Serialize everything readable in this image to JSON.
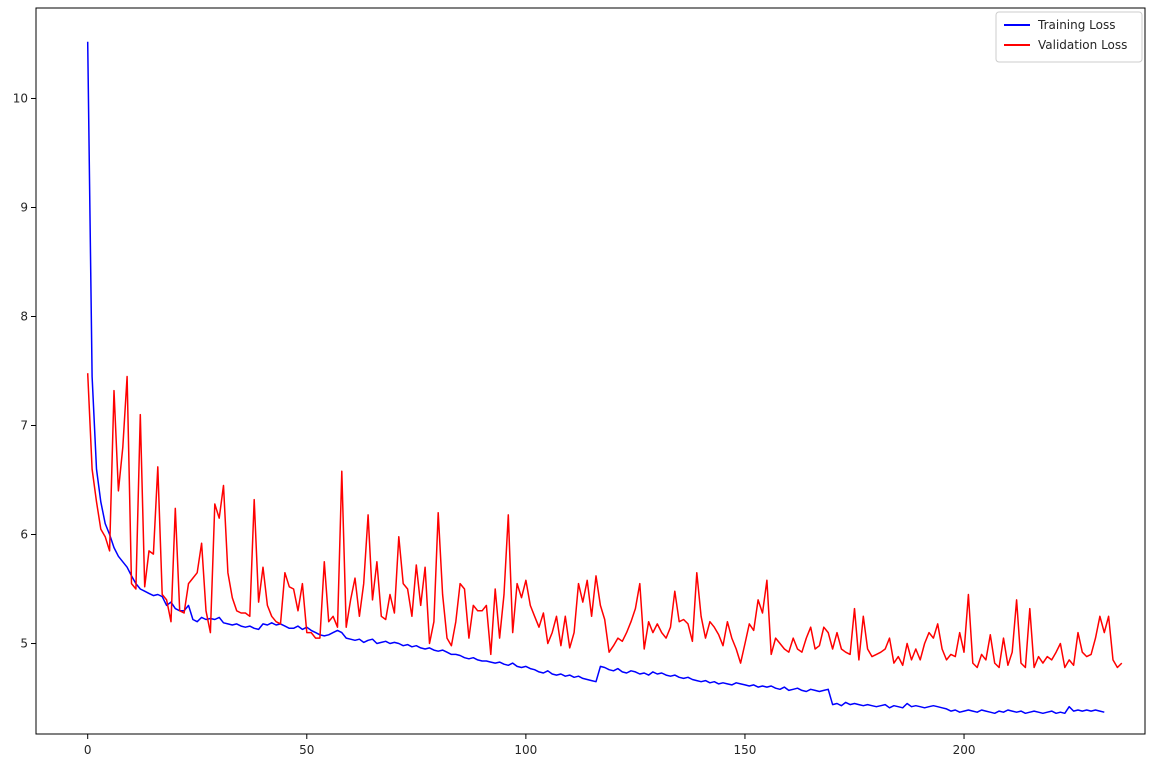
{
  "chart_data": {
    "type": "line",
    "title": "",
    "xlabel": "",
    "ylabel": "",
    "xlim": [
      -11.8,
      241.3
    ],
    "ylim": [
      4.17,
      10.83
    ],
    "xticks": [
      0,
      50,
      100,
      150,
      200
    ],
    "yticks": [
      5,
      6,
      7,
      8,
      9,
      10
    ],
    "grid": false,
    "legend_position": "top-right",
    "series": [
      {
        "name": "Training Loss",
        "color": "#0000ff",
        "x_start": 0,
        "values": [
          10.52,
          7.45,
          6.6,
          6.3,
          6.1,
          6.0,
          5.88,
          5.8,
          5.75,
          5.7,
          5.62,
          5.55,
          5.5,
          5.48,
          5.46,
          5.44,
          5.45,
          5.43,
          5.35,
          5.38,
          5.32,
          5.3,
          5.3,
          5.35,
          5.22,
          5.2,
          5.24,
          5.22,
          5.23,
          5.22,
          5.24,
          5.19,
          5.18,
          5.17,
          5.18,
          5.16,
          5.15,
          5.16,
          5.14,
          5.13,
          5.18,
          5.17,
          5.19,
          5.17,
          5.18,
          5.16,
          5.14,
          5.14,
          5.16,
          5.13,
          5.15,
          5.12,
          5.1,
          5.08,
          5.07,
          5.08,
          5.1,
          5.12,
          5.1,
          5.05,
          5.04,
          5.03,
          5.04,
          5.01,
          5.03,
          5.04,
          5.0,
          5.01,
          5.02,
          5.0,
          5.01,
          5.0,
          4.98,
          4.99,
          4.97,
          4.98,
          4.96,
          4.95,
          4.96,
          4.94,
          4.93,
          4.94,
          4.92,
          4.9,
          4.9,
          4.89,
          4.87,
          4.86,
          4.87,
          4.85,
          4.84,
          4.84,
          4.83,
          4.82,
          4.83,
          4.81,
          4.8,
          4.82,
          4.79,
          4.78,
          4.79,
          4.77,
          4.76,
          4.74,
          4.73,
          4.75,
          4.72,
          4.71,
          4.72,
          4.7,
          4.71,
          4.69,
          4.7,
          4.68,
          4.67,
          4.66,
          4.65,
          4.79,
          4.78,
          4.76,
          4.75,
          4.77,
          4.74,
          4.73,
          4.75,
          4.74,
          4.72,
          4.73,
          4.71,
          4.74,
          4.72,
          4.73,
          4.71,
          4.7,
          4.71,
          4.69,
          4.68,
          4.69,
          4.67,
          4.66,
          4.65,
          4.66,
          4.64,
          4.65,
          4.63,
          4.64,
          4.63,
          4.62,
          4.64,
          4.63,
          4.62,
          4.61,
          4.62,
          4.6,
          4.61,
          4.6,
          4.61,
          4.59,
          4.58,
          4.6,
          4.57,
          4.58,
          4.59,
          4.57,
          4.56,
          4.58,
          4.57,
          4.56,
          4.57,
          4.58,
          4.44,
          4.45,
          4.43,
          4.46,
          4.44,
          4.45,
          4.44,
          4.43,
          4.44,
          4.43,
          4.42,
          4.43,
          4.44,
          4.41,
          4.43,
          4.42,
          4.41,
          4.45,
          4.42,
          4.43,
          4.42,
          4.41,
          4.42,
          4.43,
          4.42,
          4.41,
          4.4,
          4.38,
          4.39,
          4.37,
          4.38,
          4.39,
          4.38,
          4.37,
          4.39,
          4.38,
          4.37,
          4.36,
          4.38,
          4.37,
          4.39,
          4.38,
          4.37,
          4.38,
          4.36,
          4.37,
          4.38,
          4.37,
          4.36,
          4.37,
          4.38,
          4.36,
          4.37,
          4.36,
          4.42,
          4.38,
          4.39,
          4.38,
          4.39,
          4.38,
          4.39,
          4.38,
          4.37
        ]
      },
      {
        "name": "Validation Loss",
        "color": "#ff0000",
        "x_start": 0,
        "values": [
          7.48,
          6.6,
          6.3,
          6.05,
          5.98,
          5.85,
          7.32,
          6.4,
          6.8,
          7.45,
          5.55,
          5.5,
          7.1,
          5.52,
          5.85,
          5.82,
          6.62,
          5.45,
          5.4,
          5.2,
          6.24,
          5.3,
          5.28,
          5.55,
          5.6,
          5.65,
          5.92,
          5.3,
          5.1,
          6.28,
          6.15,
          6.45,
          5.65,
          5.42,
          5.3,
          5.28,
          5.28,
          5.25,
          6.32,
          5.38,
          5.7,
          5.35,
          5.25,
          5.2,
          5.18,
          5.65,
          5.52,
          5.5,
          5.3,
          5.55,
          5.1,
          5.1,
          5.05,
          5.05,
          5.75,
          5.2,
          5.25,
          5.15,
          6.58,
          5.15,
          5.4,
          5.6,
          5.25,
          5.55,
          6.18,
          5.4,
          5.75,
          5.25,
          5.22,
          5.45,
          5.28,
          5.98,
          5.55,
          5.5,
          5.25,
          5.72,
          5.35,
          5.7,
          5.0,
          5.2,
          6.2,
          5.45,
          5.05,
          4.98,
          5.2,
          5.55,
          5.5,
          5.05,
          5.35,
          5.3,
          5.3,
          5.35,
          4.9,
          5.5,
          5.05,
          5.45,
          6.18,
          5.1,
          5.55,
          5.42,
          5.58,
          5.35,
          5.25,
          5.15,
          5.28,
          5.0,
          5.1,
          5.25,
          4.98,
          5.25,
          4.96,
          5.1,
          5.55,
          5.38,
          5.58,
          5.25,
          5.62,
          5.35,
          5.22,
          4.92,
          4.98,
          5.05,
          5.02,
          5.1,
          5.2,
          5.32,
          5.55,
          4.95,
          5.2,
          5.1,
          5.18,
          5.1,
          5.05,
          5.15,
          5.48,
          5.2,
          5.22,
          5.18,
          5.02,
          5.65,
          5.25,
          5.05,
          5.2,
          5.15,
          5.08,
          4.98,
          5.2,
          5.05,
          4.95,
          4.82,
          5.0,
          5.18,
          5.12,
          5.4,
          5.28,
          5.58,
          4.9,
          5.05,
          5.0,
          4.95,
          4.92,
          5.05,
          4.95,
          4.92,
          5.05,
          5.15,
          4.95,
          4.98,
          5.15,
          5.1,
          4.95,
          5.1,
          4.95,
          4.92,
          4.9,
          5.32,
          4.85,
          5.25,
          4.95,
          4.88,
          4.9,
          4.92,
          4.95,
          5.05,
          4.82,
          4.88,
          4.8,
          5.0,
          4.85,
          4.95,
          4.85,
          5.0,
          5.1,
          5.05,
          5.18,
          4.95,
          4.85,
          4.9,
          4.88,
          5.1,
          4.92,
          5.45,
          4.82,
          4.78,
          4.9,
          4.85,
          5.08,
          4.82,
          4.78,
          5.05,
          4.8,
          4.92,
          5.4,
          4.82,
          4.78,
          5.32,
          4.78,
          4.88,
          4.82,
          4.88,
          4.85,
          4.92,
          5.0,
          4.78,
          4.85,
          4.8,
          5.1,
          4.92,
          4.88,
          4.9,
          5.05,
          5.25,
          5.1,
          5.25,
          4.85,
          4.78,
          4.82
        ]
      }
    ]
  }
}
